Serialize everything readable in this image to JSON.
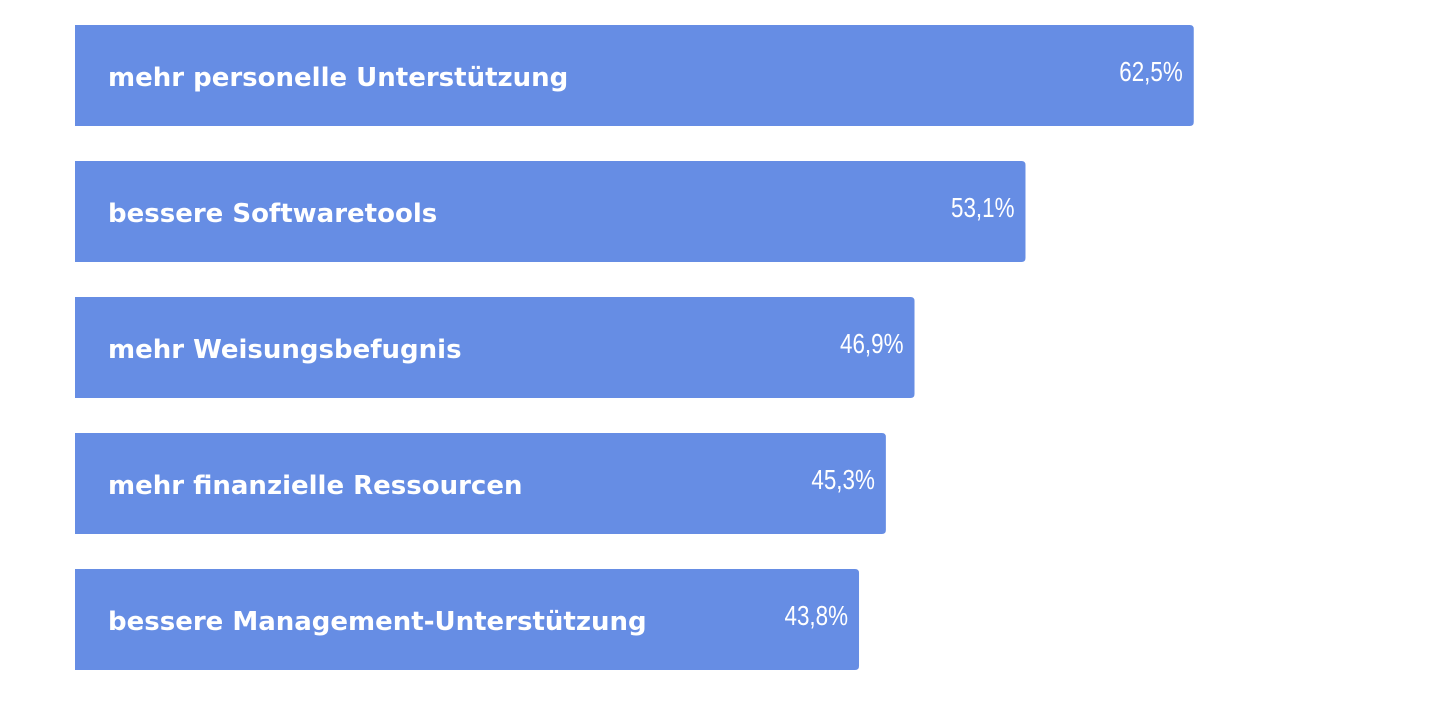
{
  "chart_data": {
    "type": "bar",
    "orientation": "horizontal",
    "categories": [
      "mehr personelle Unterstützung",
      "bessere Softwaretools",
      "mehr Weisungsbefugnis",
      "mehr finanzielle Ressourcen",
      "bessere Management-Unterstützung"
    ],
    "values": [
      62.5,
      53.1,
      46.9,
      45.3,
      43.8
    ],
    "value_labels": [
      "62,5%",
      "53,1%",
      "46,9%",
      "45,3%",
      "43,8%"
    ],
    "color": "#668de4"
  }
}
